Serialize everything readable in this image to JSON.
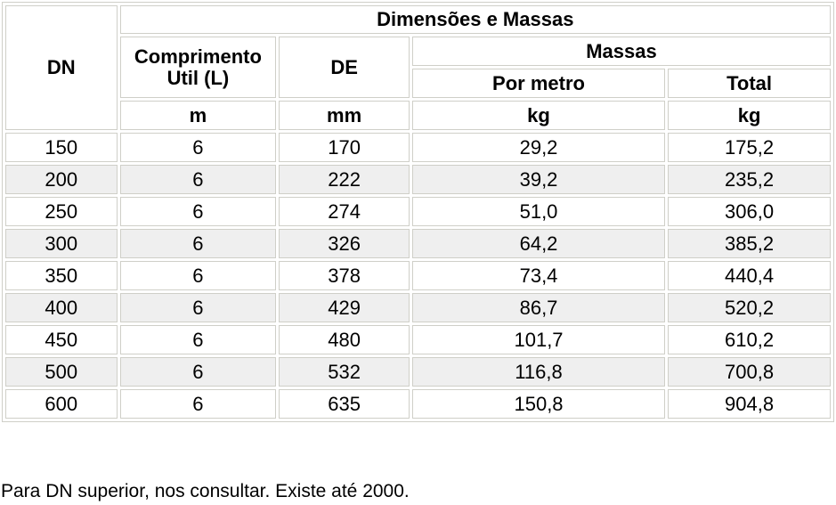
{
  "table": {
    "header_group": "Dimensões e Massas",
    "col_dn": "DN",
    "col_length": "Comprimento Util (L)",
    "col_de": "DE",
    "col_masses": "Massas",
    "col_per_meter": "Por metro",
    "col_total": "Total",
    "units": {
      "length": "m",
      "de": "mm",
      "per_meter": "kg",
      "total": "kg"
    },
    "rows": [
      {
        "dn": "150",
        "length": "6",
        "de": "170",
        "per_meter": "29,2",
        "total": "175,2"
      },
      {
        "dn": "200",
        "length": "6",
        "de": "222",
        "per_meter": "39,2",
        "total": "235,2"
      },
      {
        "dn": "250",
        "length": "6",
        "de": "274",
        "per_meter": "51,0",
        "total": "306,0"
      },
      {
        "dn": "300",
        "length": "6",
        "de": "326",
        "per_meter": "64,2",
        "total": "385,2"
      },
      {
        "dn": "350",
        "length": "6",
        "de": "378",
        "per_meter": "73,4",
        "total": "440,4"
      },
      {
        "dn": "400",
        "length": "6",
        "de": "429",
        "per_meter": "86,7",
        "total": "520,2"
      },
      {
        "dn": "450",
        "length": "6",
        "de": "480",
        "per_meter": "101,7",
        "total": "610,2"
      },
      {
        "dn": "500",
        "length": "6",
        "de": "532",
        "per_meter": "116,8",
        "total": "700,8"
      },
      {
        "dn": "600",
        "length": "6",
        "de": "635",
        "per_meter": "150,8",
        "total": "904,8"
      }
    ]
  },
  "footnote": "Para DN superior, nos consultar. Existe até 2000.",
  "colors": {
    "border": "#cfcfc8",
    "alt_row_bg": "#efefef"
  }
}
